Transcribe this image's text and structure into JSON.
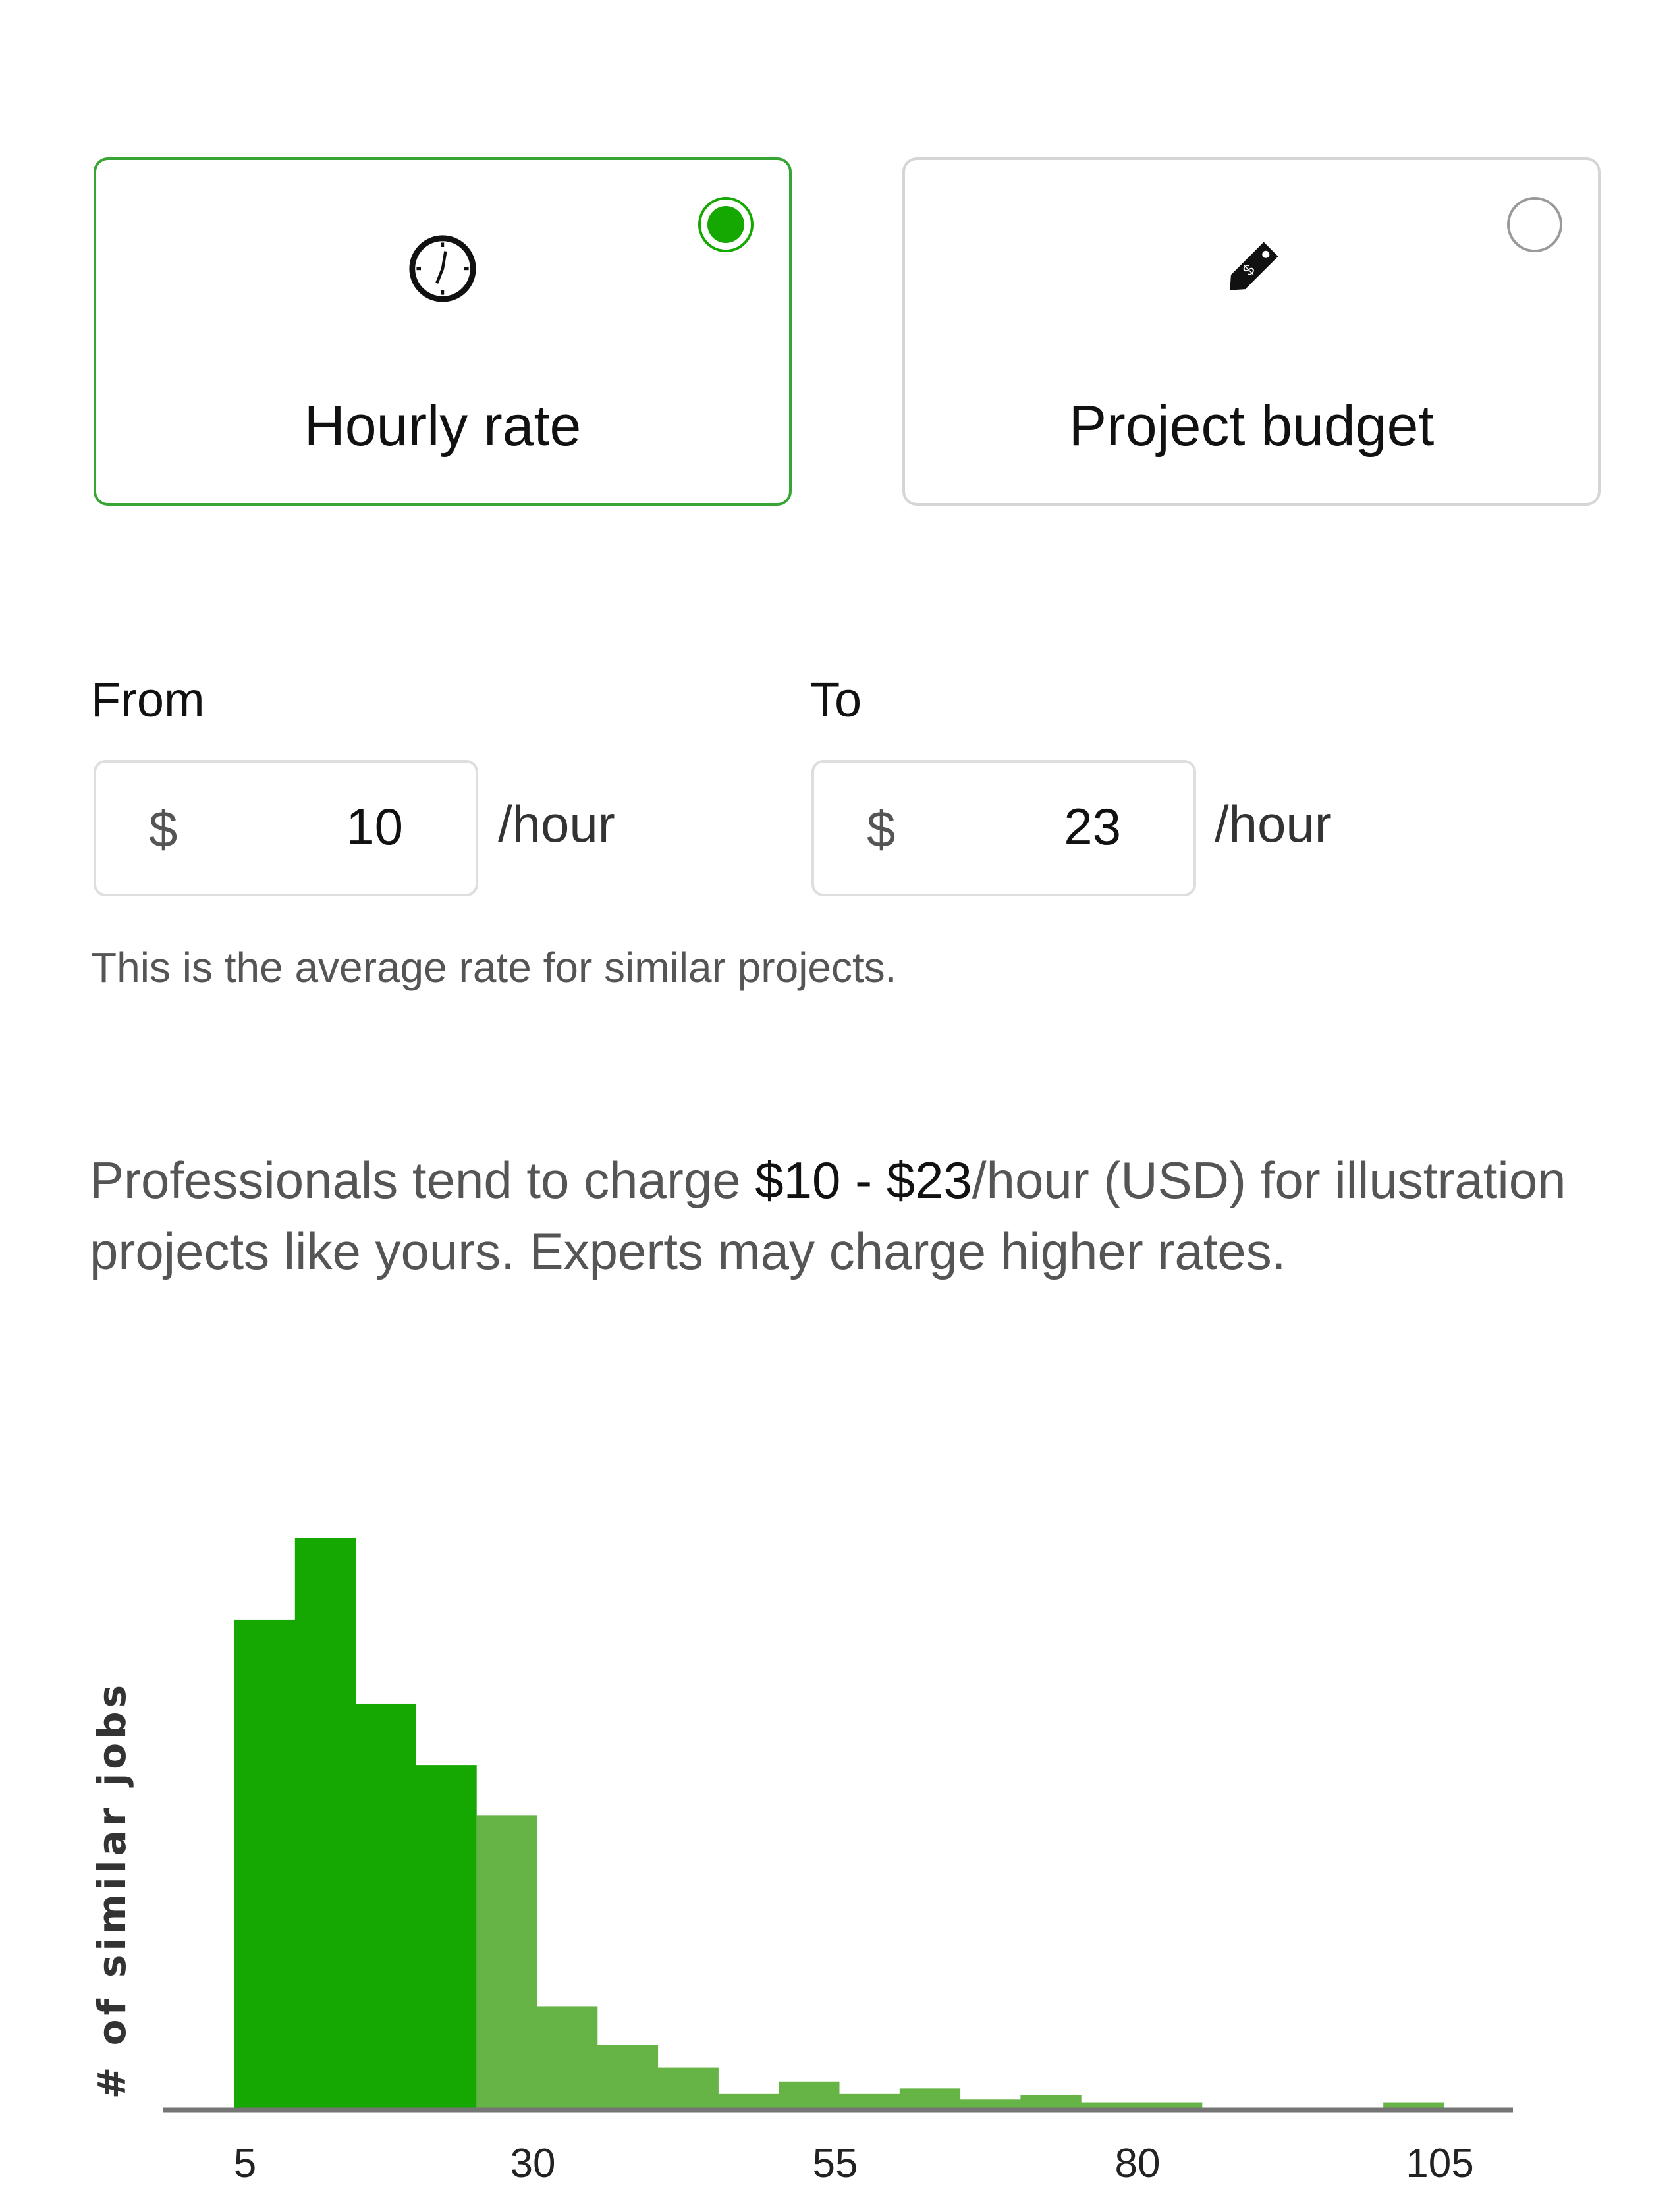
{
  "rate_type": {
    "options": [
      {
        "label": "Hourly rate",
        "icon": "clock-icon",
        "selected": true
      },
      {
        "label": "Project budget",
        "icon": "price-tag-icon",
        "selected": false
      }
    ]
  },
  "range": {
    "from": {
      "label": "From",
      "currency": "$",
      "value": "10",
      "unit": "/hour"
    },
    "to": {
      "label": "To",
      "currency": "$",
      "value": "23",
      "unit": "/hour"
    },
    "hint": "This is the average rate for similar projects."
  },
  "summary": {
    "prefix": "Professionals tend to charge ",
    "range": "$10 - $23",
    "suffix": "/hour (USD) for illustration projects like yours. Experts may charge higher rates."
  },
  "colors": {
    "accent": "#14a800",
    "highlight_bar": "#14a800",
    "other_bar": "#66b446",
    "axis": "#757575",
    "unselected_border": "#d5d5d5"
  },
  "chart_data": {
    "type": "bar",
    "ylabel": "# of similar jobs",
    "xlabel": "",
    "bin_width": 5,
    "bins_start": [
      5,
      10,
      15,
      20,
      25,
      30,
      35,
      40,
      45,
      50,
      55,
      60,
      65,
      70,
      75,
      80,
      85,
      90,
      95,
      100
    ],
    "values": [
      350,
      409,
      290,
      246,
      210,
      73,
      45,
      29,
      10,
      19,
      10,
      14,
      6,
      9,
      4,
      4,
      0,
      0,
      0,
      4
    ],
    "highlighted": [
      true,
      true,
      true,
      true,
      false,
      false,
      false,
      false,
      false,
      false,
      false,
      false,
      false,
      false,
      false,
      false,
      false,
      false,
      false,
      false
    ],
    "x_ticks": [
      "5",
      "30",
      "55",
      "80",
      "105"
    ],
    "xlim": [
      5,
      105
    ],
    "ylim": [
      0,
      409
    ],
    "grid": false
  }
}
